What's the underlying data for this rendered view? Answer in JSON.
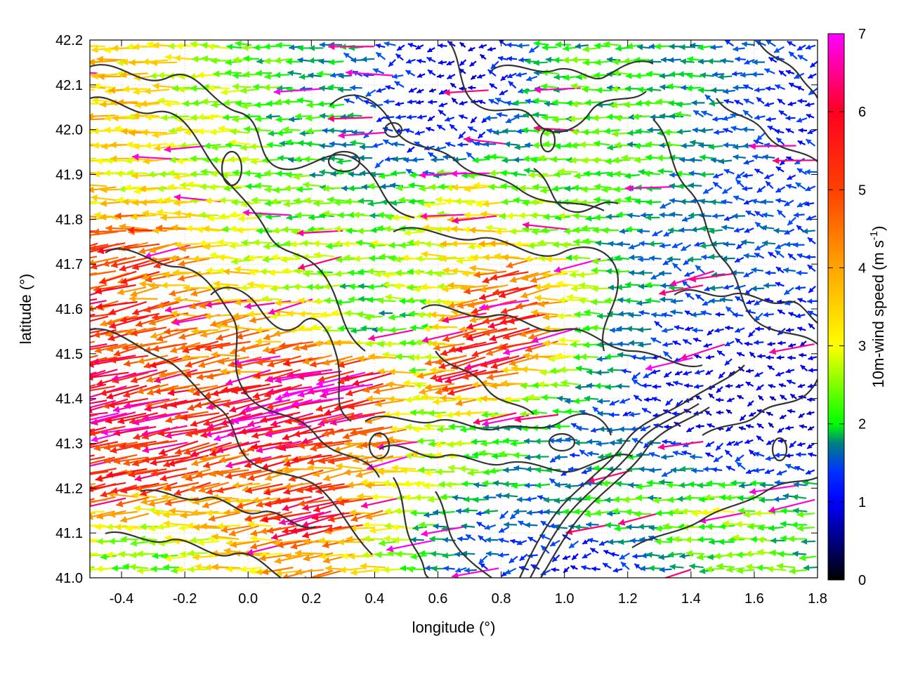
{
  "chart_data": {
    "type": "vector-field",
    "title": "",
    "xlabel": "longitude (°)",
    "ylabel": "latitude (°)",
    "colorbar_label": "10m-wind speed (m s",
    "colorbar_label_sup": "-1",
    "colorbar_label_end": ")",
    "xlim": [
      -0.5,
      1.8
    ],
    "ylim": [
      41.0,
      42.2
    ],
    "xticks": [
      -0.4,
      -0.2,
      0.0,
      0.2,
      0.4,
      0.6,
      0.8,
      1.0,
      1.2,
      1.4,
      1.6,
      1.8
    ],
    "xtick_labels": [
      "-0.4",
      "-0.2",
      "0.0",
      "0.2",
      "0.4",
      "0.6",
      "0.8",
      "1.0",
      "1.2",
      "1.4",
      "1.6",
      "1.8"
    ],
    "yticks": [
      41.0,
      41.1,
      41.2,
      41.3,
      41.4,
      41.5,
      41.6,
      41.7,
      41.8,
      41.9,
      42.0,
      42.1,
      42.2
    ],
    "ytick_labels": [
      "41.0",
      "41.1",
      "41.2",
      "41.3",
      "41.4",
      "41.5",
      "41.6",
      "41.7",
      "41.8",
      "41.9",
      "42.0",
      "42.1",
      "42.2"
    ],
    "colorbar": {
      "range": [
        0,
        7
      ],
      "ticks": [
        0,
        1,
        2,
        3,
        4,
        5,
        6,
        7
      ],
      "tick_labels": [
        "0",
        "1",
        "2",
        "3",
        "4",
        "5",
        "6",
        "7"
      ],
      "palette": [
        "#000000",
        "#0000ff",
        "#00ff00",
        "#ffff00",
        "#ffa500",
        "#ff0000",
        "#ff00ff"
      ]
    },
    "grid": true,
    "contour_color": "#333333",
    "wind_rows": [
      {
        "lat": 42.15,
        "speeds": [
          3.5,
          3.2,
          2.6,
          2.2,
          1.8,
          1.5,
          1.0,
          0.8,
          1.6,
          2.1,
          2.0,
          1.8,
          1.5,
          1.2
        ]
      },
      {
        "lat": 42.05,
        "speeds": [
          3.6,
          3.3,
          2.7,
          2.2,
          1.9,
          1.4,
          0.9,
          0.9,
          1.7,
          2.2,
          2.1,
          1.9,
          1.4,
          1.1
        ]
      },
      {
        "lat": 41.95,
        "speeds": [
          3.5,
          3.3,
          2.8,
          2.3,
          2.0,
          1.6,
          1.2,
          1.4,
          1.9,
          2.3,
          2.2,
          1.9,
          1.5,
          1.2
        ]
      },
      {
        "lat": 41.85,
        "speeds": [
          3.4,
          3.1,
          2.8,
          2.4,
          2.2,
          2.0,
          2.3,
          3.5,
          2.6,
          2.3,
          2.0,
          1.7,
          1.4,
          1.3
        ]
      },
      {
        "lat": 41.75,
        "speeds": [
          4.8,
          5.4,
          3.2,
          2.6,
          2.4,
          2.5,
          2.8,
          3.6,
          3.0,
          2.2,
          1.8,
          1.6,
          1.5,
          1.4
        ]
      },
      {
        "lat": 41.65,
        "speeds": [
          5.2,
          4.6,
          3.8,
          3.4,
          2.4,
          2.2,
          2.6,
          3.4,
          6.2,
          2.6,
          2.0,
          1.6,
          1.5,
          1.3
        ]
      },
      {
        "lat": 41.55,
        "speeds": [
          5.4,
          5.0,
          4.6,
          4.0,
          3.6,
          2.0,
          1.8,
          4.6,
          6.5,
          2.4,
          1.6,
          1.2,
          1.1,
          1.0
        ]
      },
      {
        "lat": 41.45,
        "speeds": [
          5.6,
          5.4,
          4.8,
          4.4,
          6.5,
          6.8,
          2.6,
          5.6,
          3.2,
          2.2,
          1.4,
          1.0,
          0.9,
          1.0
        ]
      },
      {
        "lat": 41.35,
        "speeds": [
          6.0,
          5.8,
          5.4,
          6.6,
          6.4,
          5.2,
          2.8,
          2.4,
          2.0,
          1.6,
          1.2,
          0.9,
          0.8,
          0.8
        ]
      },
      {
        "lat": 41.25,
        "speeds": [
          5.8,
          5.6,
          5.2,
          4.8,
          4.6,
          4.2,
          3.2,
          2.4,
          1.8,
          1.4,
          2.0,
          1.6,
          1.2,
          1.2
        ]
      },
      {
        "lat": 41.15,
        "speeds": [
          3.8,
          3.4,
          3.6,
          4.2,
          6.4,
          4.4,
          2.2,
          1.6,
          1.4,
          1.8,
          2.2,
          2.4,
          2.6,
          2.2
        ]
      },
      {
        "lat": 41.05,
        "speeds": [
          2.6,
          2.4,
          3.2,
          3.6,
          4.2,
          3.2,
          1.8,
          1.4,
          1.2,
          1.0,
          1.2,
          2.0,
          2.4,
          2.2
        ]
      }
    ]
  }
}
